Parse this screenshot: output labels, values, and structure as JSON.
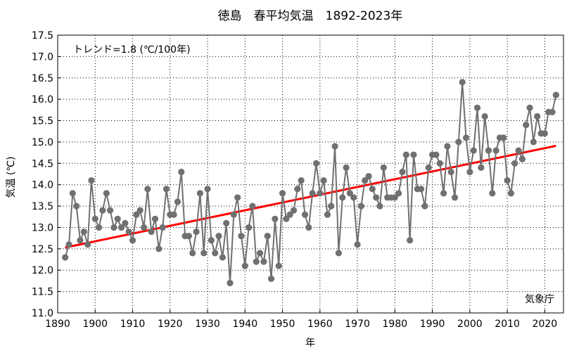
{
  "chart_data": {
    "type": "line",
    "title": "徳島　春平均気温　1892-2023年",
    "xlabel": "年",
    "ylabel": "気温 (℃)",
    "xlim": [
      1890,
      2025
    ],
    "ylim": [
      11.0,
      17.5
    ],
    "xticks": [
      1890,
      1900,
      1910,
      1920,
      1930,
      1940,
      1950,
      1960,
      1970,
      1980,
      1990,
      2000,
      2010,
      2020
    ],
    "yticks": [
      11.0,
      11.5,
      12.0,
      12.5,
      13.0,
      13.5,
      14.0,
      14.5,
      15.0,
      15.5,
      16.0,
      16.5,
      17.0,
      17.5
    ],
    "grid": true,
    "trend_label": "トレンド=1.8 (℃/100年)",
    "source_label": "気象庁",
    "colors": {
      "series": "#707070",
      "trend": "#ff0000",
      "grid": "#000000"
    },
    "x": [
      1892,
      1893,
      1894,
      1895,
      1896,
      1897,
      1898,
      1899,
      1900,
      1901,
      1902,
      1903,
      1904,
      1905,
      1906,
      1907,
      1908,
      1909,
      1910,
      1911,
      1912,
      1913,
      1914,
      1915,
      1916,
      1917,
      1918,
      1919,
      1920,
      1921,
      1922,
      1923,
      1924,
      1925,
      1926,
      1927,
      1928,
      1929,
      1930,
      1931,
      1932,
      1933,
      1934,
      1935,
      1936,
      1937,
      1938,
      1939,
      1940,
      1941,
      1942,
      1943,
      1944,
      1945,
      1946,
      1947,
      1948,
      1949,
      1950,
      1951,
      1952,
      1953,
      1954,
      1955,
      1956,
      1957,
      1958,
      1959,
      1960,
      1961,
      1962,
      1963,
      1964,
      1965,
      1966,
      1967,
      1968,
      1969,
      1970,
      1971,
      1972,
      1973,
      1974,
      1975,
      1976,
      1977,
      1978,
      1979,
      1980,
      1981,
      1982,
      1983,
      1984,
      1985,
      1986,
      1987,
      1988,
      1989,
      1990,
      1991,
      1992,
      1993,
      1994,
      1995,
      1996,
      1997,
      1998,
      1999,
      2000,
      2001,
      2002,
      2003,
      2004,
      2005,
      2006,
      2007,
      2008,
      2009,
      2010,
      2011,
      2012,
      2013,
      2014,
      2015,
      2016,
      2017,
      2018,
      2019,
      2020,
      2021,
      2022,
      2023
    ],
    "series": [
      {
        "values": [
          12.3,
          12.6,
          13.8,
          13.5,
          12.7,
          12.9,
          12.6,
          14.1,
          13.2,
          13.0,
          13.4,
          13.8,
          13.4,
          13.0,
          13.2,
          13.0,
          13.1,
          12.9,
          12.7,
          13.3,
          13.4,
          13.0,
          13.9,
          12.9,
          13.2,
          12.5,
          13.0,
          13.9,
          13.3,
          13.3,
          13.6,
          14.3,
          12.8,
          12.8,
          12.4,
          12.9,
          13.8,
          12.4,
          13.9,
          12.7,
          12.4,
          12.8,
          12.3,
          13.1,
          11.7,
          13.3,
          13.7,
          12.8,
          12.1,
          13.0,
          13.5,
          12.2,
          12.4,
          12.2,
          12.8,
          11.8,
          13.2,
          12.1,
          13.8,
          13.2,
          13.3,
          13.4,
          13.9,
          14.1,
          13.3,
          13.0,
          13.8,
          14.5,
          13.8,
          14.1,
          13.3,
          13.5,
          14.9,
          12.4,
          13.7,
          14.4,
          13.8,
          13.7,
          12.6,
          13.5,
          14.1,
          14.2,
          13.9,
          13.7,
          13.5,
          14.4,
          13.7,
          13.7,
          13.7,
          13.8,
          14.3,
          14.7,
          12.7,
          14.7,
          13.9,
          13.9,
          13.5,
          14.4,
          14.7,
          14.7,
          14.5,
          13.8,
          14.9,
          14.3,
          13.7,
          15.0,
          16.4,
          15.1,
          14.3,
          14.8,
          15.8,
          14.4,
          15.6,
          14.8,
          13.8,
          14.8,
          15.1,
          15.1,
          14.1,
          13.8,
          14.5,
          14.8,
          14.6,
          15.4,
          15.8,
          15.0,
          15.6,
          15.2,
          15.2,
          15.7,
          15.7,
          16.1
        ]
      }
    ],
    "trend": {
      "start": [
        1892,
        12.53
      ],
      "end": [
        2023,
        14.91
      ]
    }
  }
}
